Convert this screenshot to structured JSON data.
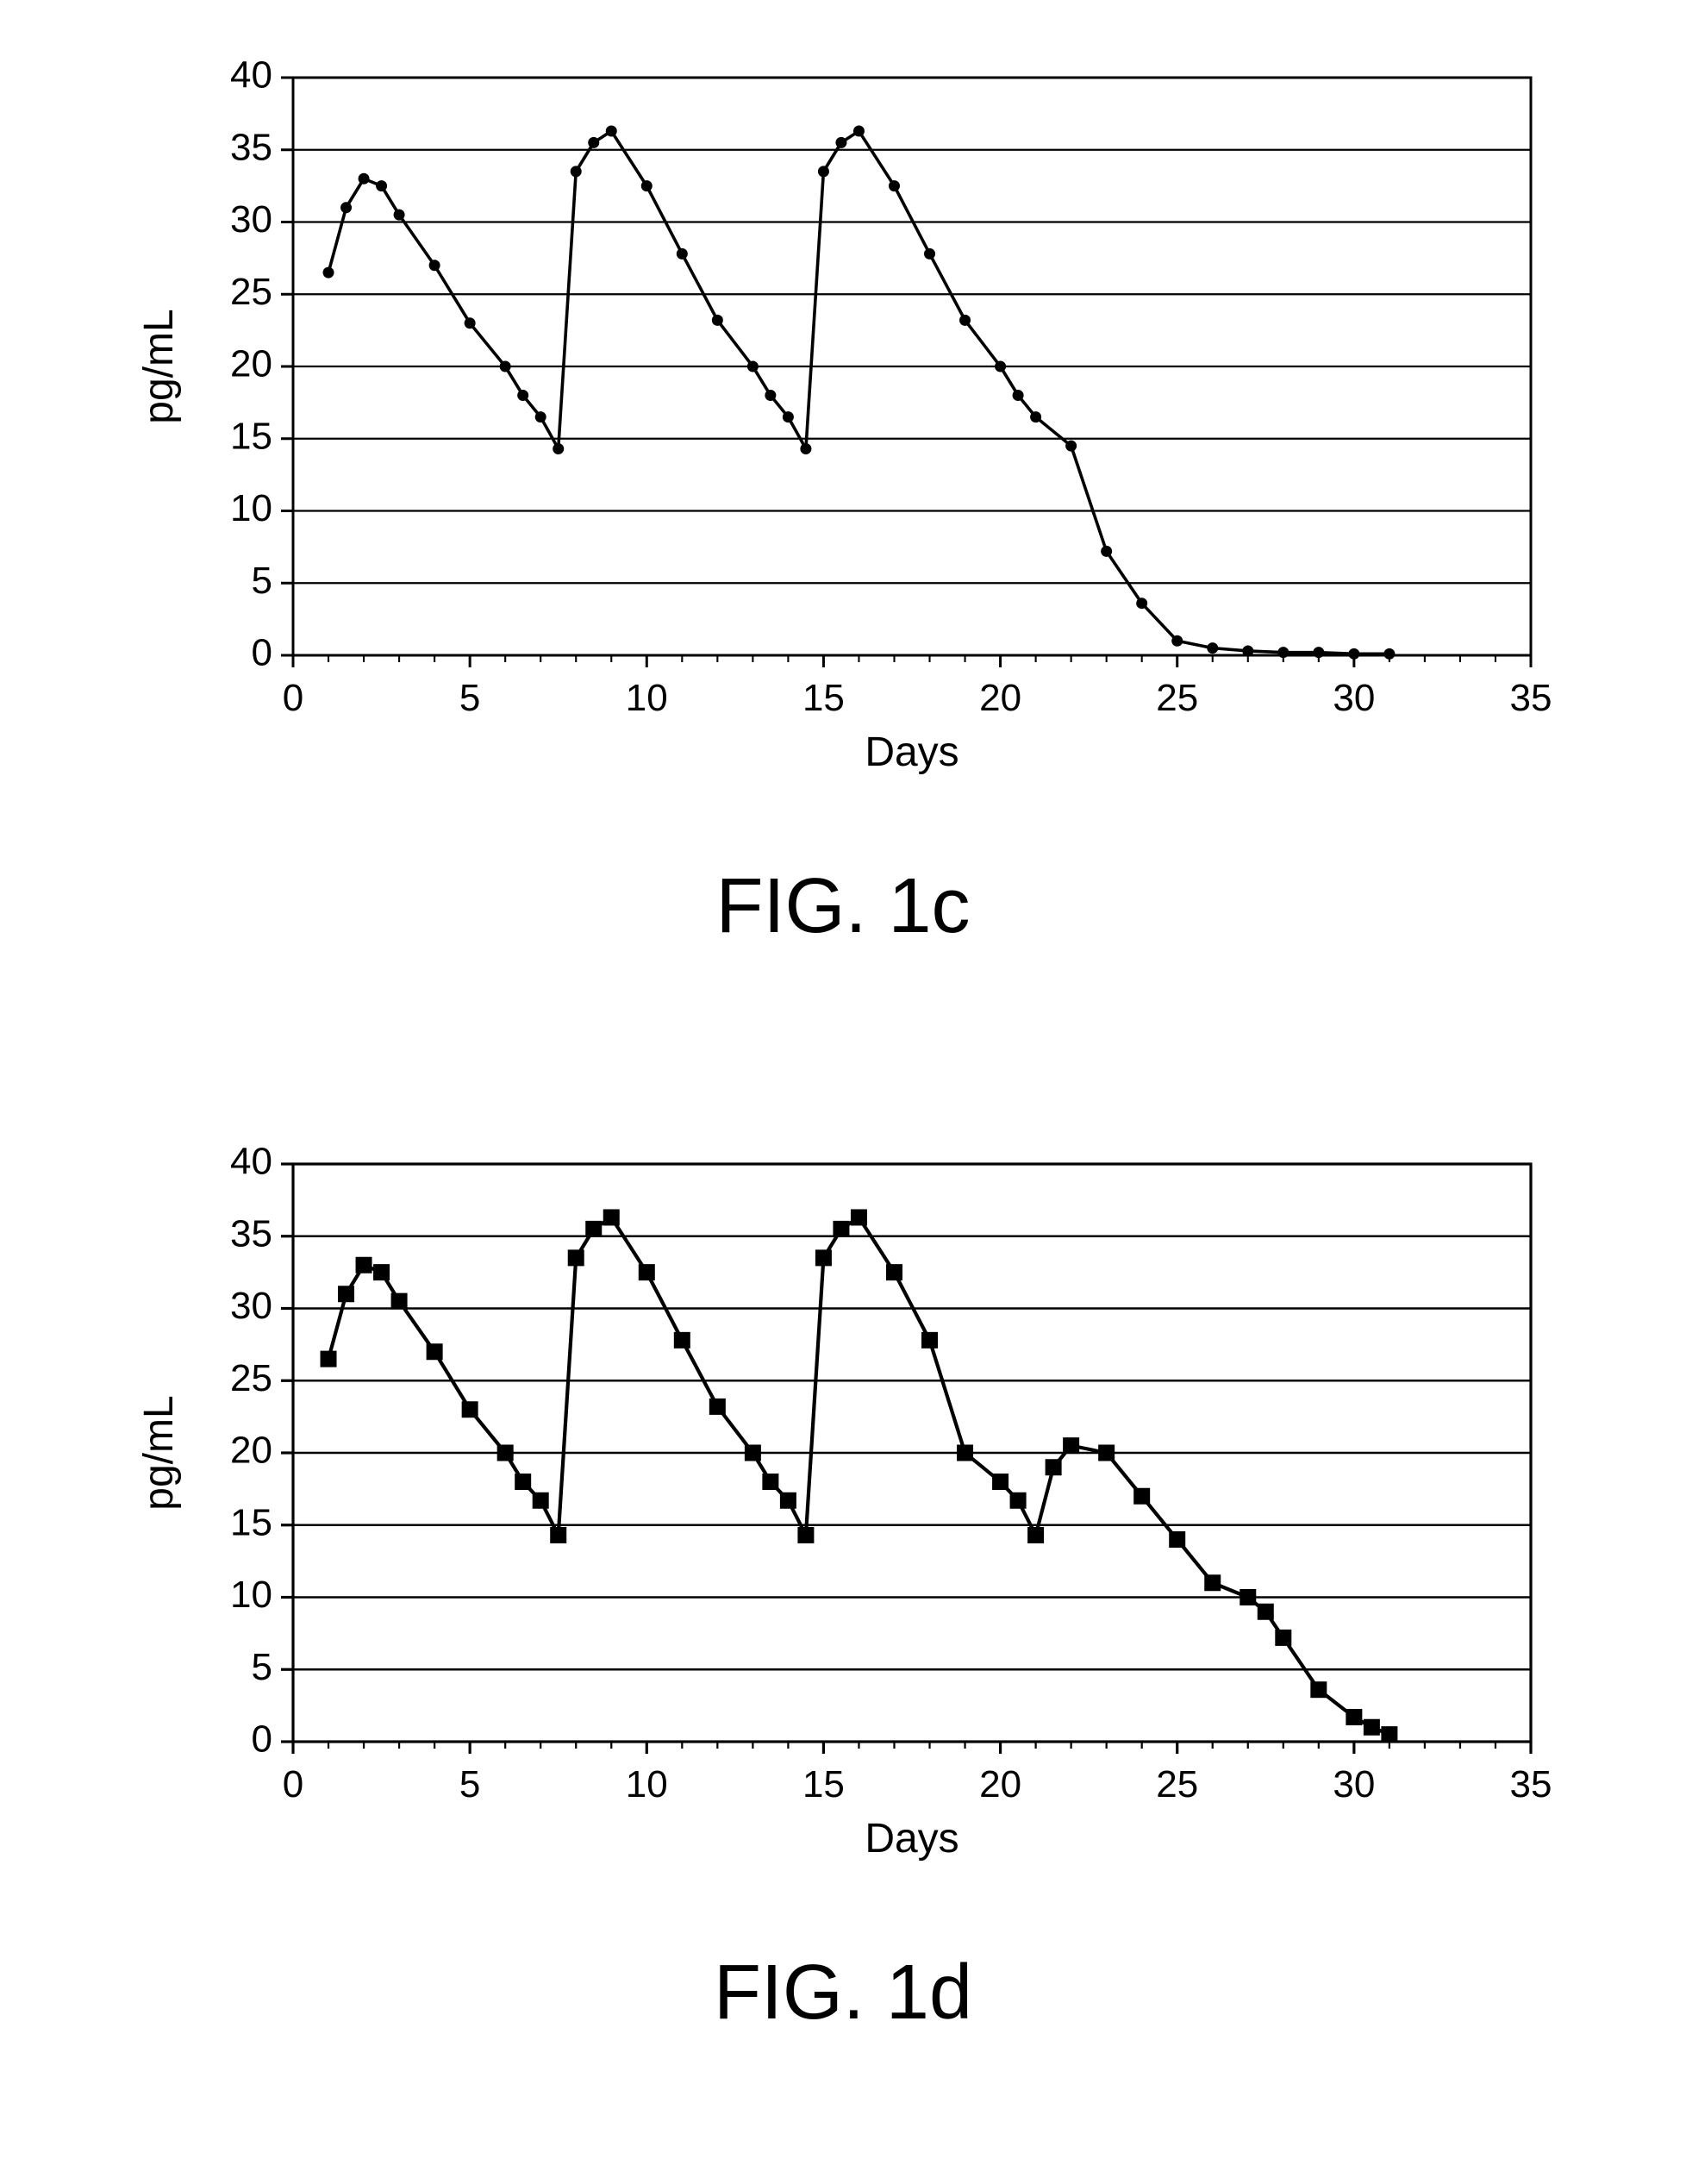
{
  "fig1c": {
    "type": "line",
    "title": "FIG. 1c",
    "title_fontsize": 90,
    "xlabel": "Days",
    "ylabel": "pg/mL",
    "label_fontsize": 48,
    "tick_fontsize": 44,
    "xlim": [
      0,
      35
    ],
    "ylim": [
      0,
      40
    ],
    "xtick_step": 5,
    "ytick_step": 5,
    "xticks": [
      0,
      5,
      10,
      15,
      20,
      25,
      30,
      35
    ],
    "yticks": [
      0,
      5,
      10,
      15,
      20,
      25,
      30,
      35,
      40
    ],
    "grid_on": true,
    "grid_axis": "y",
    "grid_color": "#000000",
    "grid_linewidth": 2.2,
    "background_color": "#ffffff",
    "axis_color": "#000000",
    "axis_linewidth": 3.0,
    "tick_length_major": 14,
    "tick_length_minor": 8,
    "minor_ticks": true,
    "line_color": "#000000",
    "line_width": 3.6,
    "marker_style": "circle",
    "marker_size": 6,
    "marker_fill": "#000000",
    "marker_edge": "#000000",
    "x": [
      1,
      1.5,
      2,
      2.5,
      3,
      4,
      5,
      6,
      6.5,
      7,
      7.5,
      8,
      8.5,
      9,
      10,
      11,
      12,
      13,
      13.5,
      14,
      14.5,
      15,
      15.5,
      16,
      17,
      18,
      19,
      20,
      20.5,
      21,
      22,
      23,
      24,
      25,
      26,
      27,
      28,
      29,
      30,
      31
    ],
    "y": [
      26.5,
      31,
      33,
      32.5,
      30.5,
      27,
      23,
      20,
      18,
      16.5,
      14.3,
      33.5,
      35.5,
      36.3,
      32.5,
      27.8,
      23.2,
      20,
      18,
      16.5,
      14.3,
      33.5,
      35.5,
      36.3,
      32.5,
      27.8,
      23.2,
      20,
      18,
      16.5,
      14.5,
      7.2,
      3.6,
      1.0,
      0.5,
      0.3,
      0.2,
      0.2,
      0.1,
      0.1
    ]
  },
  "fig1d": {
    "type": "line",
    "title": "FIG. 1d",
    "title_fontsize": 90,
    "xlabel": "Days",
    "ylabel": "pg/mL",
    "label_fontsize": 48,
    "tick_fontsize": 44,
    "xlim": [
      0,
      35
    ],
    "ylim": [
      0,
      40
    ],
    "xtick_step": 5,
    "ytick_step": 5,
    "xticks": [
      0,
      5,
      10,
      15,
      20,
      25,
      30,
      35
    ],
    "yticks": [
      0,
      5,
      10,
      15,
      20,
      25,
      30,
      35,
      40
    ],
    "grid_on": true,
    "grid_axis": "y",
    "grid_color": "#000000",
    "grid_linewidth": 2.6,
    "background_color": "#ffffff",
    "axis_color": "#000000",
    "axis_linewidth": 3.2,
    "tick_length_major": 14,
    "tick_length_minor": 8,
    "minor_ticks": true,
    "line_color": "#000000",
    "line_width": 4.2,
    "marker_style": "square",
    "marker_size": 9,
    "marker_fill": "#000000",
    "marker_edge": "#000000",
    "x": [
      1,
      1.5,
      2,
      2.5,
      3,
      4,
      5,
      6,
      6.5,
      7,
      7.5,
      8,
      8.5,
      9,
      10,
      11,
      12,
      13,
      13.5,
      14,
      14.5,
      15,
      15.5,
      16,
      17,
      18,
      19,
      20,
      20.5,
      21,
      21.5,
      22,
      23,
      24,
      25,
      26,
      27,
      27.5,
      28,
      29,
      30,
      30.5,
      31
    ],
    "y": [
      26.5,
      31,
      33,
      32.5,
      30.5,
      27,
      23,
      20,
      18,
      16.7,
      14.3,
      33.5,
      35.5,
      36.3,
      32.5,
      27.8,
      23.2,
      20,
      18,
      16.7,
      14.3,
      33.5,
      35.5,
      36.3,
      32.5,
      27.8,
      20,
      18,
      16.7,
      14.3,
      19,
      20.5,
      20,
      17,
      14,
      11,
      10,
      9,
      7.2,
      3.6,
      1.7,
      1.0,
      0.5
    ]
  }
}
